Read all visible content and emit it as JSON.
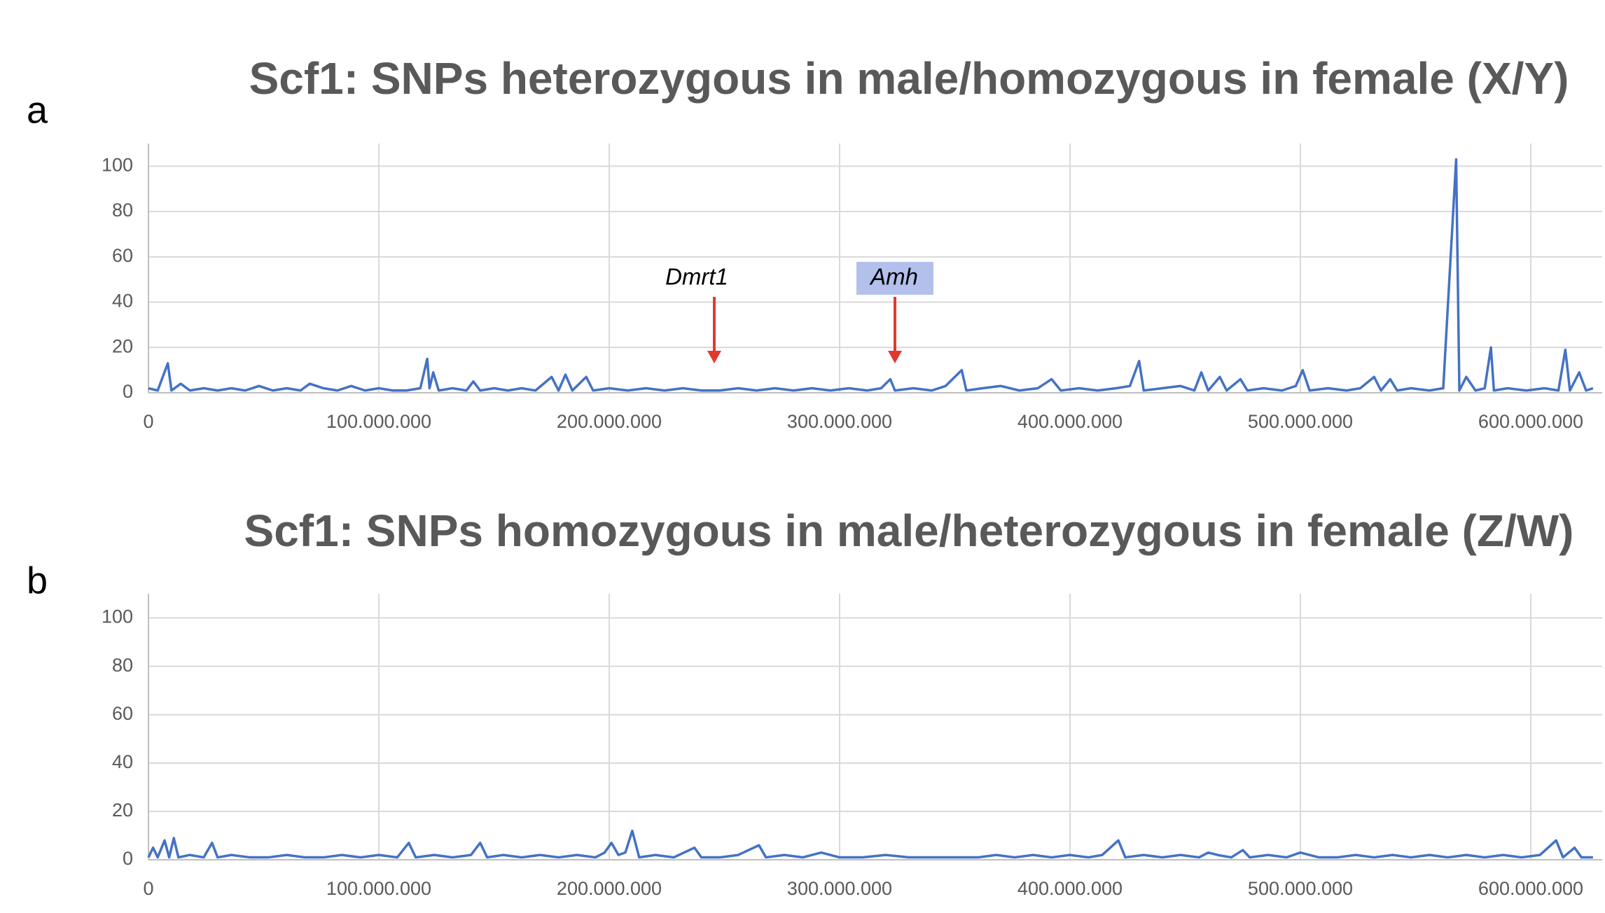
{
  "chart_data": [
    {
      "type": "line",
      "panel": "a",
      "title": "Scf1: SNPs heterozygous in male/homozygous in female (X/Y)",
      "color": "#4472c4",
      "grid": true,
      "xlim": [
        0,
        631000000
      ],
      "ylim": [
        0,
        110
      ],
      "xticks": [
        0,
        {
          "value": 100000000,
          "label": "100.000.000"
        },
        {
          "value": 200000000,
          "label": "200.000.000"
        },
        {
          "value": 300000000,
          "label": "300.000.000"
        },
        {
          "value": 400000000,
          "label": "400.000.000"
        },
        {
          "value": 500000000,
          "label": "500.000.000"
        },
        {
          "value": 600000000,
          "label": "600.000.000"
        }
      ],
      "yticks": [
        0,
        20,
        40,
        60,
        80,
        100
      ],
      "annotations": [
        "Dmrt1",
        "Amh"
      ],
      "x": [
        0,
        4000000.0,
        8400000.0,
        10000000.0,
        14000000.0,
        18000000.0,
        24000000.0,
        30000000.0,
        36000000.0,
        42000000.0,
        48000000.0,
        54000000.0,
        60000000.0,
        66000000.0,
        70000000.0,
        76000000.0,
        82000000.0,
        88000000.0,
        94000000.0,
        100000000.0,
        106000000.0,
        112000000.0,
        118000000.0,
        121000000.0,
        122000000.0,
        123600000.0,
        126000000.0,
        132000000.0,
        138000000.0,
        141000000.0,
        144000000.0,
        150000000.0,
        156000000.0,
        162000000.0,
        168000000.0,
        175000000.0,
        178000000.0,
        181000000.0,
        184000000.0,
        190000000.0,
        193000000.0,
        200000000.0,
        208000000.0,
        216000000.0,
        224000000.0,
        232000000.0,
        240000000.0,
        248000000.0,
        256000000.0,
        264000000.0,
        272000000.0,
        280000000.0,
        288000000.0,
        296000000.0,
        304000000.0,
        312000000.0,
        318000000.0,
        322000000.0,
        324000000.0,
        332000000.0,
        340000000.0,
        346000000.0,
        353000000.0,
        355000000.0,
        362000000.0,
        370000000.0,
        378000000.0,
        386000000.0,
        392000000.0,
        396000000.0,
        404000000.0,
        412000000.0,
        420000000.0,
        426000000.0,
        430000000.0,
        432000000.0,
        440000000.0,
        448000000.0,
        454000000.0,
        457000000.0,
        460000000.0,
        465000000.0,
        468000000.0,
        474000000.0,
        477000000.0,
        484000000.0,
        492000000.0,
        498000000.0,
        501000000.0,
        504000000.0,
        512000000.0,
        520000000.0,
        526000000.0,
        532000000.0,
        535000000.0,
        539000000.0,
        542000000.0,
        548000000.0,
        556000000.0,
        562000000.0,
        567600000.0,
        569000000.0,
        572000000.0,
        576000000.0,
        580000000.0,
        582700000.0,
        584000000.0,
        590000000.0,
        598000000.0,
        606000000.0,
        612000000.0,
        615000000.0,
        617000000.0,
        621000000.0,
        624000000.0,
        627000000.0
      ],
      "values": [
        2,
        1,
        13,
        1,
        4,
        1,
        2,
        1,
        2,
        1,
        3,
        1,
        2,
        1,
        4,
        2,
        1,
        3,
        1,
        2,
        1,
        1,
        2,
        15,
        2,
        9,
        1,
        2,
        1,
        5,
        1,
        2,
        1,
        2,
        1,
        7,
        1,
        8,
        1,
        7,
        1,
        2,
        1,
        2,
        1,
        2,
        1,
        1,
        2,
        1,
        2,
        1,
        2,
        1,
        2,
        1,
        2,
        6,
        1,
        2,
        1,
        3,
        10,
        1,
        2,
        3,
        1,
        2,
        6,
        1,
        2,
        1,
        2,
        3,
        14,
        1,
        2,
        3,
        1,
        9,
        1,
        7,
        1,
        6,
        1,
        2,
        1,
        3,
        10,
        1,
        2,
        1,
        2,
        7,
        1,
        6,
        1,
        2,
        1,
        2,
        103,
        1,
        7,
        1,
        2,
        20,
        1,
        2,
        1,
        2,
        1,
        19,
        1,
        9,
        1,
        2
      ]
    },
    {
      "type": "line",
      "panel": "b",
      "title": "Scf1: SNPs homozygous in male/heterozygous in female (Z/W)",
      "color": "#4472c4",
      "grid": true,
      "xlim": [
        0,
        631000000
      ],
      "ylim": [
        0,
        110
      ],
      "xticks": [
        0,
        {
          "value": 100000000,
          "label": "100.000.000"
        },
        {
          "value": 200000000,
          "label": "200.000.000"
        },
        {
          "value": 300000000,
          "label": "300.000.000"
        },
        {
          "value": 400000000,
          "label": "400.000.000"
        },
        {
          "value": 500000000,
          "label": "500.000.000"
        },
        {
          "value": 600000000,
          "label": "600.000.000"
        }
      ],
      "yticks": [
        0,
        20,
        40,
        60,
        80,
        100
      ],
      "x": [
        0,
        2000000.0,
        4000000.0,
        7000000.0,
        9000000.0,
        11000000.0,
        13000000.0,
        18000000.0,
        24000000.0,
        27600000.0,
        30000000.0,
        36000000.0,
        44000000.0,
        52000000.0,
        60000000.0,
        68000000.0,
        76000000.0,
        84000000.0,
        92000000.0,
        100000000.0,
        108000000.0,
        113000000.0,
        116000000.0,
        124000000.0,
        132000000.0,
        140000000.0,
        144000000.0,
        147000000.0,
        154000000.0,
        162000000.0,
        170000000.0,
        178000000.0,
        186000000.0,
        194000000.0,
        198000000.0,
        201000000.0,
        204000000.0,
        207000000.0,
        210000000.0,
        213000000.0,
        220000000.0,
        228000000.0,
        237000000.0,
        240000000.0,
        248000000.0,
        256000000.0,
        265000000.0,
        268000000.0,
        276000000.0,
        284000000.0,
        292000000.0,
        300000000.0,
        310000000.0,
        320000000.0,
        330000000.0,
        340000000.0,
        350000000.0,
        360000000.0,
        368000000.0,
        376000000.0,
        384000000.0,
        392000000.0,
        400000000.0,
        408000000.0,
        414000000.0,
        421000000.0,
        424000000.0,
        432000000.0,
        440000000.0,
        448000000.0,
        456000000.0,
        460000000.0,
        464000000.0,
        470000000.0,
        475000000.0,
        478000000.0,
        486000000.0,
        494000000.0,
        500000000.0,
        508000000.0,
        516000000.0,
        524000000.0,
        532000000.0,
        540000000.0,
        548000000.0,
        556000000.0,
        564000000.0,
        572000000.0,
        580000000.0,
        588000000.0,
        596000000.0,
        604000000.0,
        611000000.0,
        614000000.0,
        619000000.0,
        622000000.0,
        627000000.0
      ],
      "values": [
        1,
        5,
        1,
        8,
        1,
        9,
        1,
        2,
        1,
        7,
        1,
        2,
        1,
        1,
        2,
        1,
        1,
        2,
        1,
        2,
        1,
        7,
        1,
        2,
        1,
        2,
        7,
        1,
        2,
        1,
        2,
        1,
        2,
        1,
        3,
        7,
        2,
        3,
        12,
        1,
        2,
        1,
        5,
        1,
        1,
        2,
        6,
        1,
        2,
        1,
        3,
        1,
        1,
        2,
        1,
        1,
        1,
        1,
        2,
        1,
        2,
        1,
        2,
        1,
        2,
        8,
        1,
        2,
        1,
        2,
        1,
        3,
        2,
        1,
        4,
        1,
        2,
        1,
        3,
        1,
        1,
        2,
        1,
        2,
        1,
        2,
        1,
        2,
        1,
        2,
        1,
        2,
        8,
        1,
        5,
        1,
        1
      ]
    }
  ]
}
